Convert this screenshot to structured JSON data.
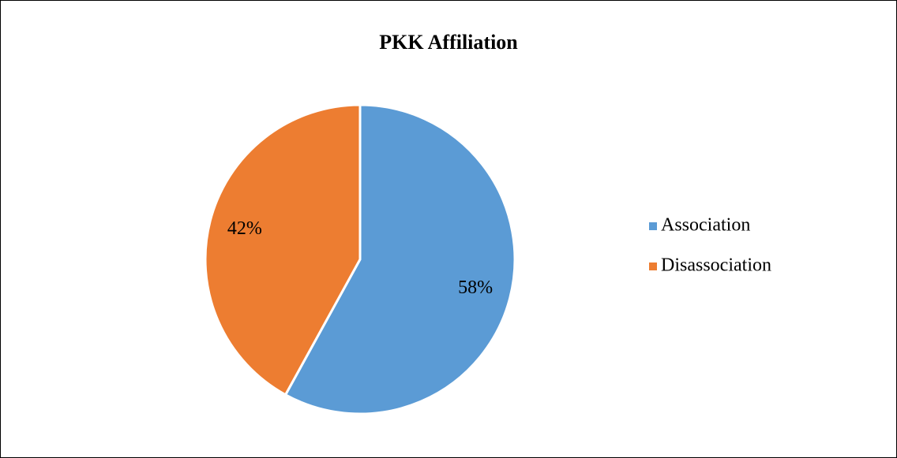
{
  "chart_data": {
    "type": "pie",
    "title": "PKK Affiliation",
    "categories": [
      "Association",
      "Disassociation"
    ],
    "values": [
      58,
      42
    ],
    "value_labels": [
      "58%",
      "42%"
    ],
    "colors": [
      "#5b9bd5",
      "#ed7d31"
    ],
    "legend": "right"
  }
}
